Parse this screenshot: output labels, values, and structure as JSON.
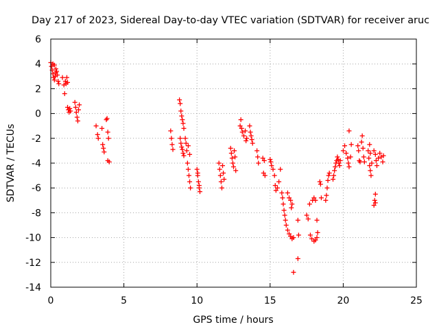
{
  "chart_data": {
    "type": "scatter",
    "title": "Day 217 of 2023, Sidereal Day-to-day VTEC variation (SDTVAR) for receiver aruc",
    "xlabel": "GPS time / hours",
    "ylabel": "SDTVAR / TECUs",
    "xlim": [
      0,
      25
    ],
    "ylim": [
      -14,
      6
    ],
    "xticks": [
      "0",
      "5",
      "10",
      "15",
      "20",
      "25"
    ],
    "yticks": [
      "6",
      "4",
      "2",
      "0",
      "-2",
      "-4",
      "-6",
      "-8",
      "-10",
      "-12",
      "-14"
    ],
    "grid": true,
    "marker": "+",
    "color": "#ff0000",
    "series": [
      {
        "name": "SDTVAR",
        "points": [
          [
            0.0,
            4.1
          ],
          [
            0.05,
            3.8
          ],
          [
            0.1,
            3.5
          ],
          [
            0.15,
            3.2
          ],
          [
            0.2,
            2.9
          ],
          [
            0.25,
            2.7
          ],
          [
            0.3,
            3.0
          ],
          [
            0.35,
            3.6
          ],
          [
            0.4,
            3.4
          ],
          [
            0.45,
            3.1
          ],
          [
            0.5,
            2.6
          ],
          [
            0.55,
            2.4
          ],
          [
            0.15,
            4.0
          ],
          [
            0.25,
            3.9
          ],
          [
            0.35,
            3.3
          ],
          [
            0.8,
            2.9
          ],
          [
            0.9,
            2.3
          ],
          [
            0.95,
            1.6
          ],
          [
            1.0,
            2.6
          ],
          [
            1.05,
            2.4
          ],
          [
            1.1,
            2.9
          ],
          [
            1.15,
            2.5
          ],
          [
            1.15,
            0.5
          ],
          [
            1.2,
            0.3
          ],
          [
            1.25,
            0.1
          ],
          [
            1.3,
            0.4
          ],
          [
            1.35,
            0.2
          ],
          [
            1.65,
            0.9
          ],
          [
            1.7,
            0.5
          ],
          [
            1.75,
            0.1
          ],
          [
            1.8,
            -0.3
          ],
          [
            1.85,
            -0.6
          ],
          [
            1.9,
            0.3
          ],
          [
            1.95,
            0.7
          ],
          [
            3.1,
            -1.0
          ],
          [
            3.2,
            -1.7
          ],
          [
            3.25,
            -2.0
          ],
          [
            3.5,
            -1.2
          ],
          [
            3.55,
            -2.5
          ],
          [
            3.6,
            -2.8
          ],
          [
            3.65,
            -3.1
          ],
          [
            3.8,
            -0.5
          ],
          [
            3.85,
            -0.4
          ],
          [
            3.9,
            -1.5
          ],
          [
            3.95,
            -2.0
          ],
          [
            3.9,
            -3.8
          ],
          [
            4.0,
            -3.9
          ],
          [
            8.2,
            -1.4
          ],
          [
            8.25,
            -2.0
          ],
          [
            8.3,
            -2.5
          ],
          [
            8.35,
            -2.9
          ],
          [
            8.8,
            1.1
          ],
          [
            8.85,
            0.8
          ],
          [
            8.9,
            0.2
          ],
          [
            8.95,
            -0.2
          ],
          [
            9.0,
            -0.5
          ],
          [
            9.05,
            -0.8
          ],
          [
            9.1,
            -1.2
          ],
          [
            8.85,
            -2.0
          ],
          [
            8.9,
            -2.4
          ],
          [
            8.95,
            -2.7
          ],
          [
            9.0,
            -2.9
          ],
          [
            9.05,
            -3.2
          ],
          [
            9.1,
            -3.4
          ],
          [
            9.2,
            -2.0
          ],
          [
            9.25,
            -2.4
          ],
          [
            9.3,
            -3.0
          ],
          [
            9.35,
            -4.0
          ],
          [
            9.4,
            -4.5
          ],
          [
            9.45,
            -5.0
          ],
          [
            9.5,
            -5.5
          ],
          [
            9.55,
            -6.0
          ],
          [
            9.4,
            -2.6
          ],
          [
            9.5,
            -3.3
          ],
          [
            10.0,
            -4.5
          ],
          [
            10.05,
            -5.0
          ],
          [
            10.1,
            -5.5
          ],
          [
            10.15,
            -6.0
          ],
          [
            10.2,
            -6.3
          ],
          [
            10.05,
            -4.8
          ],
          [
            10.15,
            -5.8
          ],
          [
            11.5,
            -4.0
          ],
          [
            11.55,
            -4.5
          ],
          [
            11.6,
            -5.0
          ],
          [
            11.65,
            -5.5
          ],
          [
            11.7,
            -6.0
          ],
          [
            11.75,
            -4.2
          ],
          [
            11.8,
            -4.8
          ],
          [
            11.85,
            -5.3
          ],
          [
            12.3,
            -2.8
          ],
          [
            12.35,
            -3.2
          ],
          [
            12.4,
            -3.6
          ],
          [
            12.45,
            -4.0
          ],
          [
            12.5,
            -4.3
          ],
          [
            12.55,
            -3.0
          ],
          [
            12.6,
            -3.5
          ],
          [
            12.65,
            -4.6
          ],
          [
            12.95,
            -1.0
          ],
          [
            13.0,
            -0.5
          ],
          [
            13.05,
            -1.2
          ],
          [
            13.1,
            -1.5
          ],
          [
            13.2,
            -1.8
          ],
          [
            13.3,
            -1.4
          ],
          [
            13.35,
            -2.2
          ],
          [
            13.4,
            -2.0
          ],
          [
            13.6,
            -1.0
          ],
          [
            13.65,
            -1.5
          ],
          [
            13.7,
            -1.8
          ],
          [
            13.75,
            -2.1
          ],
          [
            13.8,
            -2.4
          ],
          [
            14.1,
            -3.0
          ],
          [
            14.15,
            -3.5
          ],
          [
            14.2,
            -4.0
          ],
          [
            14.5,
            -3.6
          ],
          [
            14.6,
            -3.8
          ],
          [
            14.55,
            -4.8
          ],
          [
            14.65,
            -5.0
          ],
          [
            15.0,
            -3.7
          ],
          [
            15.05,
            -3.9
          ],
          [
            15.1,
            -4.2
          ],
          [
            15.2,
            -4.5
          ],
          [
            15.3,
            -5.0
          ],
          [
            15.35,
            -5.8
          ],
          [
            15.4,
            -6.2
          ],
          [
            15.5,
            -6.0
          ],
          [
            15.6,
            -5.5
          ],
          [
            15.7,
            -4.5
          ],
          [
            15.8,
            -6.4
          ],
          [
            15.85,
            -6.8
          ],
          [
            15.9,
            -7.3
          ],
          [
            15.95,
            -7.8
          ],
          [
            16.0,
            -8.2
          ],
          [
            16.05,
            -8.6
          ],
          [
            16.1,
            -9.0
          ],
          [
            16.2,
            -9.4
          ],
          [
            16.3,
            -9.7
          ],
          [
            16.4,
            -9.9
          ],
          [
            16.5,
            -10.1
          ],
          [
            16.6,
            -10.0
          ],
          [
            16.2,
            -6.4
          ],
          [
            16.3,
            -6.8
          ],
          [
            16.4,
            -7.0
          ],
          [
            16.5,
            -7.3
          ],
          [
            16.45,
            -7.6
          ],
          [
            16.6,
            -12.8
          ],
          [
            16.9,
            -11.7
          ],
          [
            16.9,
            -8.6
          ],
          [
            16.95,
            -9.8
          ],
          [
            17.5,
            -8.2
          ],
          [
            17.6,
            -8.5
          ],
          [
            17.7,
            -7.3
          ],
          [
            17.75,
            -9.8
          ],
          [
            17.85,
            -10.1
          ],
          [
            18.0,
            -10.3
          ],
          [
            18.1,
            -10.2
          ],
          [
            18.2,
            -10.0
          ],
          [
            18.25,
            -9.6
          ],
          [
            17.9,
            -7.0
          ],
          [
            18.0,
            -6.8
          ],
          [
            18.1,
            -7.0
          ],
          [
            18.2,
            -8.6
          ],
          [
            18.4,
            -5.5
          ],
          [
            18.45,
            -5.7
          ],
          [
            18.5,
            -6.8
          ],
          [
            18.8,
            -7.0
          ],
          [
            18.85,
            -6.6
          ],
          [
            18.9,
            -6.0
          ],
          [
            18.95,
            -5.4
          ],
          [
            19.0,
            -5.0
          ],
          [
            19.05,
            -4.8
          ],
          [
            19.3,
            -5.3
          ],
          [
            19.35,
            -5.0
          ],
          [
            19.4,
            -4.6
          ],
          [
            19.45,
            -4.3
          ],
          [
            19.5,
            -4.0
          ],
          [
            19.55,
            -3.8
          ],
          [
            19.6,
            -3.5
          ],
          [
            19.65,
            -3.7
          ],
          [
            19.7,
            -4.0
          ],
          [
            19.75,
            -4.2
          ],
          [
            19.8,
            -3.8
          ],
          [
            20.0,
            -3.0
          ],
          [
            20.1,
            -2.6
          ],
          [
            20.2,
            -3.2
          ],
          [
            20.3,
            -3.6
          ],
          [
            20.35,
            -4.0
          ],
          [
            20.4,
            -4.3
          ],
          [
            20.5,
            -3.5
          ],
          [
            20.55,
            -2.5
          ],
          [
            20.4,
            -1.4
          ],
          [
            21.0,
            -2.6
          ],
          [
            21.05,
            -3.0
          ],
          [
            21.1,
            -3.8
          ],
          [
            21.15,
            -3.9
          ],
          [
            21.25,
            -2.3
          ],
          [
            21.3,
            -1.8
          ],
          [
            21.35,
            -2.8
          ],
          [
            21.4,
            -3.5
          ],
          [
            21.45,
            -3.9
          ],
          [
            21.7,
            -3.0
          ],
          [
            21.75,
            -3.6
          ],
          [
            21.8,
            -4.2
          ],
          [
            21.85,
            -4.6
          ],
          [
            21.9,
            -5.0
          ],
          [
            21.95,
            -4.0
          ],
          [
            21.8,
            -2.5
          ],
          [
            21.85,
            -3.2
          ],
          [
            22.2,
            -3.3
          ],
          [
            22.25,
            -3.8
          ],
          [
            22.3,
            -4.2
          ],
          [
            22.4,
            -3.6
          ],
          [
            22.5,
            -3.2
          ],
          [
            22.6,
            -3.5
          ],
          [
            22.7,
            -3.9
          ],
          [
            22.75,
            -3.4
          ],
          [
            22.1,
            -3.0
          ],
          [
            22.2,
            -6.5
          ],
          [
            22.15,
            -7.0
          ],
          [
            22.1,
            -7.4
          ],
          [
            22.2,
            -7.2
          ]
        ]
      }
    ]
  }
}
